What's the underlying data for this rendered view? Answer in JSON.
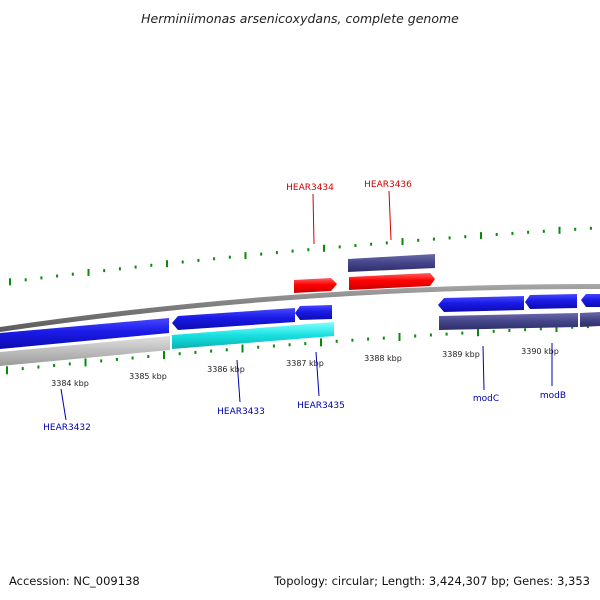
{
  "title": "Herminiimonas arsenicoxydans, complete genome",
  "scale": {
    "tick_labels": [
      "3384 kbp",
      "3385 kbp",
      "3386 kbp",
      "3387 kbp",
      "3388 kbp",
      "3389 kbp",
      "3390 kbp"
    ]
  },
  "genes": {
    "labels": [
      "HEAR3432",
      "HEAR3433",
      "HEAR3434",
      "HEAR3435",
      "HEAR3436",
      "modC",
      "modB"
    ]
  },
  "colors": {
    "forward_primary": "#1a1ae6",
    "reverse_primary": "#ff0000",
    "forward_secondary": "#44448a",
    "highlight": "#18e0e0",
    "pseudo": "#b8b8b8",
    "backbone": "#7a7a7a",
    "tick": "#0a8a0a",
    "label_red": "#d40000",
    "label_blue": "#0000b0"
  },
  "footer": {
    "accession": "Accession: NC_009138",
    "summary": "Topology: circular; Length: 3,424,307 bp; Genes: 3,353"
  }
}
